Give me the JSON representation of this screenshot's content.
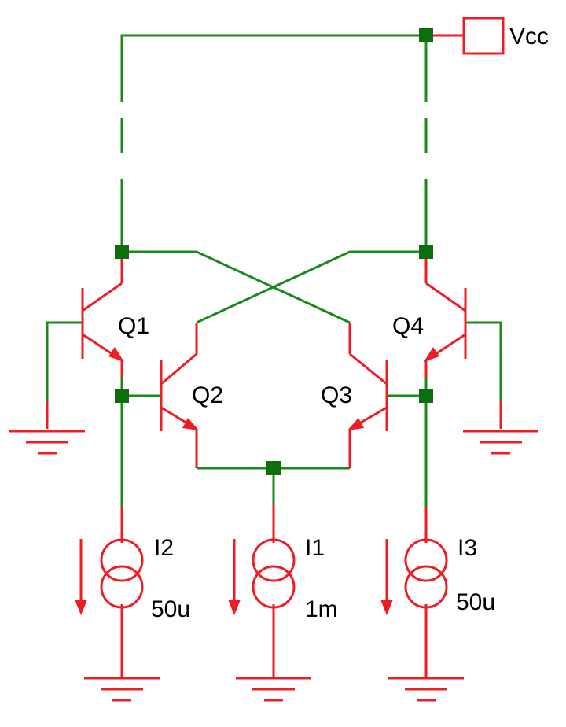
{
  "colors": {
    "wire": "#1a8a1a",
    "component": "#ee1c24",
    "junction": "#0d6e0d",
    "text": "#000000"
  },
  "labels": {
    "vcc": "Vcc",
    "q1": "Q1",
    "q2": "Q2",
    "q3": "Q3",
    "q4": "Q4",
    "i1_name": "I1",
    "i1_value": "1m",
    "i2_name": "I2",
    "i2_value": "50u",
    "i3_name": "I3",
    "i3_value": "50u"
  }
}
